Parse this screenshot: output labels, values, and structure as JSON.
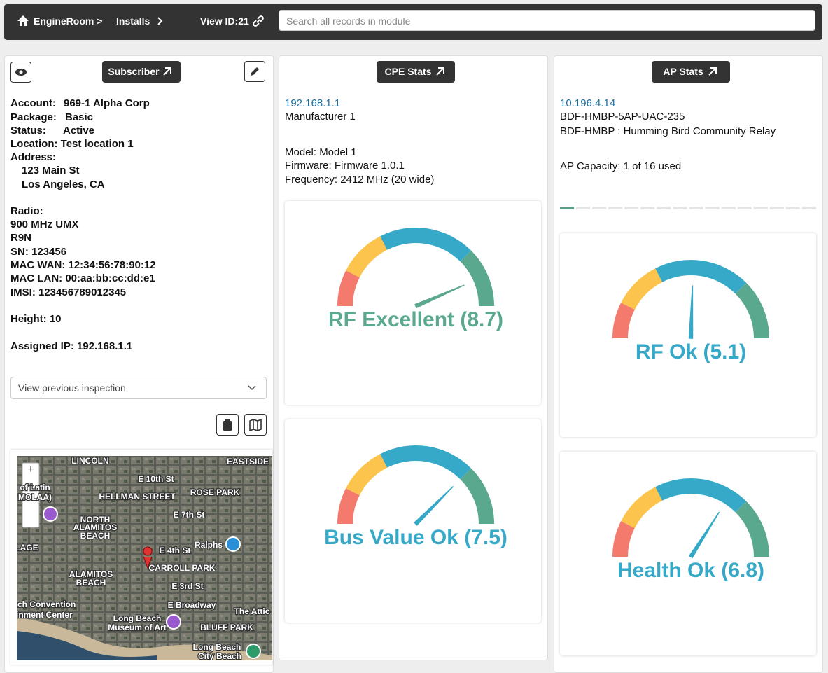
{
  "nav": {
    "crumbs": [
      "EngineRoom >",
      "Installs"
    ],
    "view_id": "View ID:21",
    "search_placeholder": "Search all records in module"
  },
  "subscriber": {
    "button": "Subscriber",
    "fields": [
      {
        "label": "Account:",
        "value": "969-1 Alpha Corp"
      },
      {
        "label": "Package:",
        "value": "Basic"
      },
      {
        "label": "Status:",
        "value": "Active"
      }
    ],
    "location": "Location: Test location 1",
    "address_label": "Address:",
    "address": [
      "123 Main St",
      "Los Angeles, CA"
    ],
    "radio_label": "Radio:",
    "radio": [
      "900 MHz UMX",
      "R9N",
      "SN: 123456",
      "MAC WAN: 12:34:56:78:90:12",
      "MAC LAN: 00:aa:bb:cc:dd:e1",
      "IMSI: 123456789012345"
    ],
    "height": "Height: 10",
    "assigned_ip": "Assigned IP: 192.168.1.1",
    "inspection_select": "View previous inspection"
  },
  "map": {
    "labels": [
      "LINCOLN",
      "EASTSIDE",
      "E 10th St",
      "of Latin",
      "MOLAA)",
      "HELLMAN STREET",
      "ROSE PARK",
      "E 7th St",
      "NORTH",
      "ALAMITOS",
      "BEACH",
      "Ralphs",
      "E 4th St",
      "LAGE",
      "CARROLL PARK",
      "ALAMITOS",
      "BEACH",
      "E 3rd St",
      "E Broadway",
      "each Convention",
      "ainment Center",
      "Long Beach",
      "Museum of Art",
      "The Attic",
      "BLUFF PARK",
      "Long Beach",
      "City Beach"
    ],
    "zoom_in": "+",
    "zoom_out": "−"
  },
  "cpe": {
    "button": "CPE Stats",
    "ip": "192.168.1.1",
    "manufacturer": "Manufacturer 1",
    "details": [
      "Model: Model 1",
      "Firmware: Firmware 1.0.1",
      "Frequency: 2412 MHz (20 wide)"
    ],
    "gauges": [
      {
        "label": "RF Excellent (8.7)",
        "value": 8.7,
        "range": [
          0,
          10
        ],
        "color": "#5aa88e"
      },
      {
        "label": "Bus Value Ok (7.5)",
        "value": 7.5,
        "range": [
          0,
          10
        ],
        "color": "#36a9c8"
      }
    ]
  },
  "ap": {
    "button": "AP Stats",
    "ip": "10.196.4.14",
    "lines": [
      "BDF-HMBP-5AP-UAC-235",
      "BDF-HMBP : Humming Bird Community Relay"
    ],
    "capacity": {
      "label": "AP Capacity: 1 of 16 used",
      "used": 1,
      "total": 16,
      "color": "#5a9e8a"
    },
    "gauges": [
      {
        "label": "RF Ok (5.1)",
        "value": 5.1,
        "range": [
          0,
          10
        ],
        "color": "#36a9c8"
      },
      {
        "label": "Health Ok (6.8)",
        "value": 6.8,
        "range": [
          0,
          10
        ],
        "color": "#36a9c8"
      }
    ]
  }
}
